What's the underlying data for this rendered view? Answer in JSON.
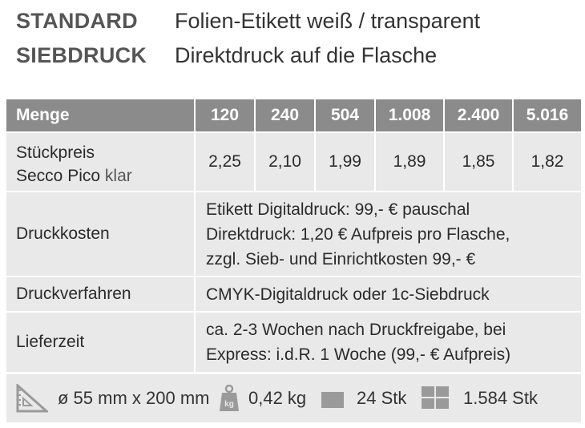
{
  "header": {
    "rows": [
      {
        "key": "STANDARD",
        "value": "Folien-Etikett weiß / transparent"
      },
      {
        "key": "SIEBDRUCK",
        "value": "Direktdruck auf die Flasche"
      }
    ]
  },
  "table": {
    "head": {
      "label": "Menge",
      "quantities": [
        "120",
        "240",
        "504",
        "1.008",
        "2.400",
        "5.016"
      ]
    },
    "price": {
      "label_line1": "Stückpreis",
      "label_line2_bold": "Secco Pico",
      "label_line2_light": "klar",
      "values": [
        "2,25",
        "2,10",
        "1,99",
        "1,89",
        "1,85",
        "1,82"
      ]
    },
    "druckkosten": {
      "label": "Druckkosten",
      "lines": [
        "Etikett Digitaldruck: 99,- € pauschal",
        "Direktdruck: 1,20 € Aufpreis pro Flasche,",
        "zzgl. Sieb- und Einrichtkosten 99,- €"
      ]
    },
    "druckverfahren": {
      "label": "Druckverfahren",
      "text": "CMYK-Digitaldruck oder 1c-Siebdruck"
    },
    "lieferzeit": {
      "label": "Lieferzeit",
      "lines": [
        "ca. 2-3 Wochen nach Druckfreigabe, bei",
        "Express:  i.d.R. 1 Woche (99,- € Aufpreis)"
      ]
    }
  },
  "footer": {
    "dimensions": "ø 55 mm x 200 mm",
    "weight_icon_text": "kg",
    "weight": "0,42 kg",
    "pack": "24 Stk",
    "pallet": "1.584 Stk",
    "icons": [
      "ruler-triangle-icon",
      "weight-icon",
      "box-icon",
      "pallet-icon"
    ]
  },
  "colors": {
    "header_row": "#8b8b8b",
    "cell_bg": "#e9e9e9",
    "icon_gray": "#9a9a9a"
  }
}
